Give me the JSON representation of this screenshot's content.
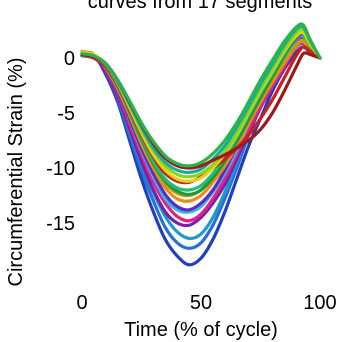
{
  "chart_data": {
    "type": "line",
    "title": "curves from 17 segments",
    "xlabel": "Time (% of cycle)",
    "ylabel": "Circumferential Strain (%)",
    "xlim": [
      0,
      100
    ],
    "ylim": [
      -20,
      4
    ],
    "xticks": [
      0,
      50,
      100
    ],
    "yticks": [
      0,
      -5,
      -10,
      -15
    ],
    "grid": false,
    "x": [
      0,
      5,
      10,
      15,
      20,
      25,
      30,
      35,
      40,
      45,
      50,
      55,
      60,
      65,
      70,
      75,
      80,
      85,
      90,
      93,
      96,
      100
    ],
    "series": [
      {
        "color": "#1f3fbf",
        "values": [
          0.5,
          0.3,
          -1.5,
          -4.0,
          -7.5,
          -11.0,
          -14.0,
          -16.5,
          -18.0,
          -18.8,
          -18.2,
          -16.5,
          -14.0,
          -11.0,
          -8.0,
          -5.5,
          -3.0,
          -1.0,
          0.5,
          1.0,
          0.5,
          0.0
        ]
      },
      {
        "color": "#2a6fd6",
        "values": [
          0.3,
          0.2,
          -1.3,
          -3.7,
          -7.0,
          -10.2,
          -13.0,
          -15.4,
          -16.8,
          -17.3,
          -16.8,
          -15.2,
          -12.8,
          -10.0,
          -7.0,
          -4.5,
          -2.5,
          -0.5,
          1.0,
          1.3,
          0.6,
          0.0
        ]
      },
      {
        "color": "#1a9ec9",
        "values": [
          0.2,
          0.1,
          -1.2,
          -3.5,
          -6.5,
          -9.6,
          -12.2,
          -14.4,
          -15.8,
          -16.4,
          -16.0,
          -14.5,
          -12.2,
          -9.5,
          -6.5,
          -4.2,
          -2.2,
          -0.3,
          1.2,
          1.5,
          0.7,
          0.0
        ]
      },
      {
        "color": "#7a1fa8",
        "values": [
          0.4,
          0.2,
          -1.3,
          -3.5,
          -6.4,
          -9.4,
          -12.0,
          -14.0,
          -15.0,
          -15.2,
          -14.5,
          -13.2,
          -11.5,
          -9.2,
          -6.8,
          -4.5,
          -2.6,
          -0.6,
          1.4,
          1.8,
          0.8,
          0.0
        ]
      },
      {
        "color": "#e0218a",
        "values": [
          0.3,
          0.2,
          -1.1,
          -3.2,
          -6.0,
          -8.8,
          -11.3,
          -13.2,
          -14.4,
          -14.8,
          -14.2,
          -12.8,
          -11.0,
          -8.8,
          -6.5,
          -4.4,
          -2.6,
          -0.8,
          1.0,
          1.4,
          0.6,
          0.0
        ]
      },
      {
        "color": "#3ab5e6",
        "values": [
          0.2,
          0.1,
          -1.0,
          -3.0,
          -5.6,
          -8.4,
          -10.8,
          -12.8,
          -13.8,
          -14.0,
          -13.5,
          -12.2,
          -10.5,
          -8.4,
          -6.0,
          -3.8,
          -1.8,
          0.0,
          1.7,
          2.0,
          1.0,
          0.0
        ]
      },
      {
        "color": "#5a2fc0",
        "values": [
          0.2,
          0.0,
          -1.0,
          -3.0,
          -5.5,
          -8.2,
          -10.5,
          -12.4,
          -13.5,
          -13.8,
          -13.2,
          -12.0,
          -10.2,
          -8.0,
          -5.6,
          -3.4,
          -1.5,
          0.3,
          1.8,
          2.2,
          1.2,
          0.0
        ]
      },
      {
        "color": "#f08a1a",
        "values": [
          0.4,
          0.2,
          -0.9,
          -2.8,
          -5.2,
          -7.8,
          -10.0,
          -11.8,
          -12.8,
          -13.0,
          -12.5,
          -11.3,
          -9.8,
          -8.0,
          -6.0,
          -4.0,
          -2.2,
          -0.5,
          1.1,
          1.5,
          0.6,
          0.0
        ]
      },
      {
        "color": "#c79a10",
        "values": [
          0.6,
          0.3,
          -0.8,
          -2.7,
          -5.0,
          -7.5,
          -9.7,
          -11.4,
          -12.3,
          -12.5,
          -12.0,
          -10.8,
          -9.2,
          -7.5,
          -5.6,
          -3.8,
          -2.0,
          -0.4,
          1.2,
          1.6,
          0.7,
          0.0
        ]
      },
      {
        "color": "#1a9a3a",
        "values": [
          0.3,
          0.2,
          -0.8,
          -2.6,
          -4.9,
          -7.4,
          -9.6,
          -11.2,
          -12.1,
          -12.4,
          -12.0,
          -10.9,
          -9.4,
          -7.6,
          -5.6,
          -3.6,
          -1.7,
          0.2,
          1.9,
          2.2,
          1.1,
          0.0
        ]
      },
      {
        "color": "#20c070",
        "values": [
          0.3,
          0.1,
          -0.8,
          -2.6,
          -4.8,
          -7.2,
          -9.4,
          -11.0,
          -11.8,
          -12.0,
          -11.6,
          -10.5,
          -9.0,
          -7.2,
          -5.2,
          -3.2,
          -1.4,
          0.5,
          2.1,
          2.4,
          1.3,
          0.0
        ]
      },
      {
        "color": "#cc1f1f",
        "values": [
          0.2,
          0.0,
          -0.8,
          -2.5,
          -4.7,
          -7.0,
          -9.0,
          -10.5,
          -11.2,
          -11.3,
          -10.8,
          -10.0,
          -9.2,
          -8.2,
          -7.0,
          -5.5,
          -3.8,
          -1.8,
          0.2,
          1.0,
          0.6,
          0.0
        ]
      },
      {
        "color": "#e3d21a",
        "values": [
          0.5,
          0.3,
          -0.6,
          -2.3,
          -4.5,
          -6.8,
          -8.8,
          -10.2,
          -11.0,
          -11.2,
          -10.9,
          -10.0,
          -8.7,
          -7.0,
          -5.0,
          -3.0,
          -1.2,
          0.6,
          2.0,
          2.3,
          1.2,
          0.0
        ]
      },
      {
        "color": "#8fd11a",
        "values": [
          0.3,
          0.1,
          -0.6,
          -2.2,
          -4.3,
          -6.5,
          -8.4,
          -9.8,
          -10.6,
          -10.8,
          -10.5,
          -9.7,
          -8.5,
          -6.8,
          -4.8,
          -2.8,
          -1.0,
          0.8,
          2.3,
          2.6,
          1.4,
          0.0
        ]
      },
      {
        "color": "#10b0a0",
        "values": [
          0.2,
          0.1,
          -0.6,
          -2.2,
          -4.2,
          -6.3,
          -8.2,
          -9.5,
          -10.2,
          -10.4,
          -10.1,
          -9.2,
          -8.0,
          -6.3,
          -4.4,
          -2.4,
          -0.6,
          1.2,
          2.6,
          2.8,
          1.5,
          0.0
        ]
      },
      {
        "color": "#9e1a1a",
        "values": [
          0.3,
          0.1,
          -0.5,
          -2.0,
          -4.0,
          -6.0,
          -7.8,
          -9.1,
          -9.8,
          -10.0,
          -9.8,
          -9.3,
          -8.8,
          -8.2,
          -7.5,
          -6.5,
          -5.0,
          -3.0,
          -0.8,
          0.4,
          0.3,
          0.0
        ]
      },
      {
        "color": "#2db34a",
        "values": [
          0.4,
          0.2,
          -0.5,
          -2.0,
          -3.9,
          -5.9,
          -7.6,
          -8.9,
          -9.6,
          -9.8,
          -9.5,
          -8.7,
          -7.5,
          -5.9,
          -4.0,
          -2.0,
          -0.2,
          1.5,
          2.8,
          3.0,
          1.6,
          0.0
        ]
      }
    ]
  }
}
